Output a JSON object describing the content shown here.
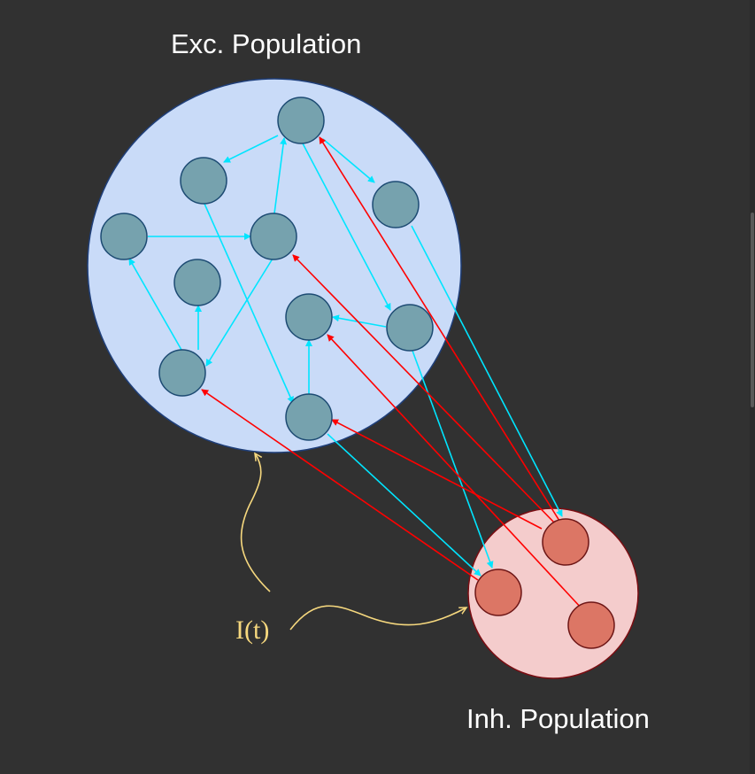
{
  "labels": {
    "excitatory_population": "Exc. Population",
    "inhibitory_population": "Inh. Population",
    "input_current": "I(t)"
  },
  "colors": {
    "background": "#313131",
    "excitatory_fill": "#c9dbf8",
    "excitatory_stroke": "#1f3f7a",
    "excitatory_neuron": "#76a2ae",
    "excitatory_neuron_stroke": "#1d4b73",
    "inhibitory_fill": "#f4cccc",
    "inhibitory_stroke": "#7a0d12",
    "inhibitory_neuron": "#dc7665",
    "inhibitory_neuron_stroke": "#6d1616",
    "excitatory_connection": "#00e5ff",
    "inhibitory_connection": "#ff0000",
    "input_arrow": "#f6d87e"
  }
}
